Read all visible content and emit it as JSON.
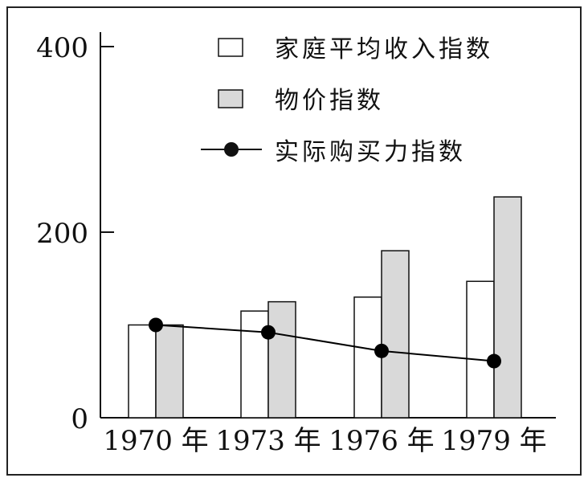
{
  "chart_data": {
    "type": "bar",
    "categories": [
      "1970 年",
      "1973 年",
      "1976 年",
      "1979 年"
    ],
    "series": [
      {
        "name": "家庭平均收入指数",
        "kind": "bar",
        "color": "#ffffff",
        "values": [
          100,
          115,
          130,
          147
        ]
      },
      {
        "name": "物价指数",
        "kind": "bar",
        "color": "#d9d9d9",
        "values": [
          100,
          125,
          180,
          238
        ]
      },
      {
        "name": "实际购买力指数",
        "kind": "line",
        "color": "#000000",
        "values": [
          100,
          92,
          72,
          61
        ]
      }
    ],
    "y_ticks": [
      "0",
      "200",
      "400"
    ],
    "ylim": [
      0,
      400
    ],
    "legend": "top-right",
    "grid": false
  }
}
